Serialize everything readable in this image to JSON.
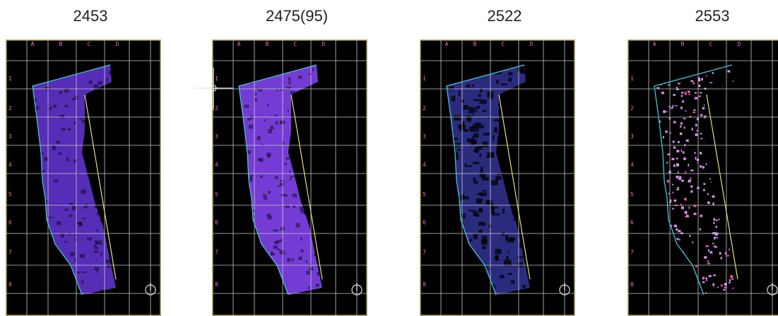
{
  "panels": [
    {
      "year": "2453",
      "fill": "#5a2fc0",
      "style": "dense"
    },
    {
      "year": "2475(95)",
      "fill": "#7a3fe0",
      "style": "dense",
      "crosshair": true
    },
    {
      "year": "2522",
      "fill": "#3a3aa8",
      "style": "sparse"
    },
    {
      "year": "2553",
      "fill": "#d890ee",
      "style": "scattered"
    }
  ],
  "columns": [
    "A",
    "B",
    "C",
    "D"
  ],
  "rows": [
    "1",
    "2",
    "3",
    "4",
    "5",
    "6",
    "7",
    "8"
  ],
  "colors": {
    "coastline": "#3fc7d6",
    "road": "#e8e07a",
    "grid": "#c9c9c9",
    "labels": "#e070d0",
    "frame": "#c9b35a"
  },
  "icons": {
    "north_arrow": "north-arrow-icon",
    "crosshair": "crosshair-icon"
  }
}
